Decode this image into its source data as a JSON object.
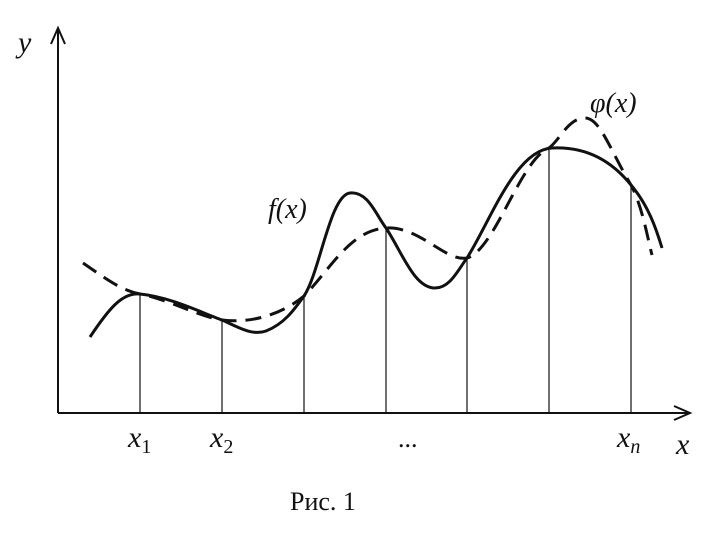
{
  "axes": {
    "y_label": "y",
    "x_label": "x"
  },
  "nodes": [
    {
      "label": "x",
      "sub": "1"
    },
    {
      "label": "x",
      "sub": "2"
    },
    {
      "label": "x",
      "sub": "n"
    }
  ],
  "ellipsis": "...",
  "curves": {
    "f": "f(x)",
    "phi": "φ(x)"
  },
  "caption": "Рис. 1"
}
